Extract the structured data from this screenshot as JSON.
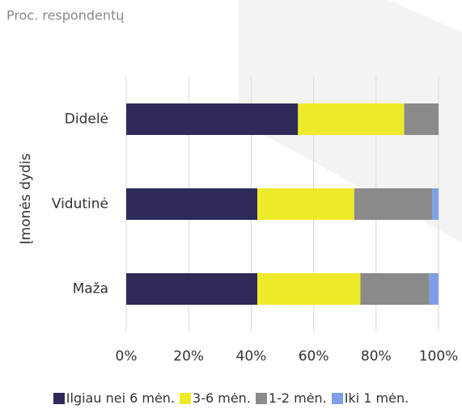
{
  "chart_data": {
    "type": "stacked_barh",
    "title": "Proc. respondentų",
    "ylabel": "Įmonės dydis",
    "categories": [
      "Didelė",
      "Vidutinė",
      "Maža"
    ],
    "series": [
      {
        "name": "Ilgiau nei 6 mėn.",
        "color": "#2e2a5a",
        "values": [
          55,
          42,
          42
        ]
      },
      {
        "name": "3-6 mėn.",
        "color": "#eeea2a",
        "values": [
          34,
          31,
          33
        ]
      },
      {
        "name": "1-2 mėn.",
        "color": "#8a8a8a",
        "values": [
          11,
          25,
          22
        ]
      },
      {
        "name": "Iki 1 mėn.",
        "color": "#7f9ee8",
        "values": [
          0,
          2,
          3
        ]
      }
    ],
    "xlim": [
      0,
      100
    ],
    "xticks": [
      {
        "value": 0,
        "label": "0%"
      },
      {
        "value": 20,
        "label": "20%"
      },
      {
        "value": 40,
        "label": "40%"
      },
      {
        "value": 60,
        "label": "60%"
      },
      {
        "value": 80,
        "label": "80%"
      },
      {
        "value": 100,
        "label": "100%"
      }
    ],
    "grid": true
  }
}
